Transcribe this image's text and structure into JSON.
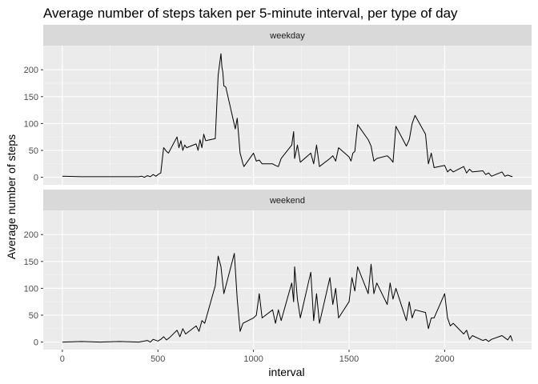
{
  "chart_data": {
    "type": "line",
    "title": "Average number of steps taken per 5-minute interval, per type of day",
    "xlabel": "interval",
    "ylabel": "Average number of steps",
    "xlim": [
      -100,
      2455
    ],
    "ylim": [
      -14,
      245
    ],
    "x_ticks": [
      0,
      500,
      1000,
      1500,
      2000
    ],
    "y_ticks": [
      0,
      50,
      100,
      150,
      200
    ],
    "grid": true,
    "facets": [
      {
        "panel": "weekday",
        "x": [
          0,
          100,
          200,
          300,
          400,
          415,
          430,
          445,
          460,
          475,
          490,
          500,
          515,
          530,
          545,
          555,
          600,
          610,
          620,
          630,
          640,
          650,
          700,
          710,
          720,
          730,
          740,
          750,
          800,
          815,
          830,
          835,
          840,
          845,
          855,
          905,
          915,
          930,
          945,
          950,
          1000,
          1015,
          1030,
          1045,
          1100,
          1115,
          1130,
          1145,
          1200,
          1210,
          1215,
          1230,
          1245,
          1300,
          1315,
          1330,
          1345,
          1400,
          1415,
          1430,
          1445,
          1500,
          1510,
          1520,
          1530,
          1545,
          1600,
          1615,
          1630,
          1645,
          1700,
          1715,
          1730,
          1745,
          1800,
          1815,
          1830,
          1845,
          1900,
          1915,
          1930,
          1945,
          2000,
          2015,
          2030,
          2045,
          2100,
          2115,
          2130,
          2145,
          2200,
          2215,
          2230,
          2245,
          2300,
          2315,
          2330,
          2355
        ],
        "y": [
          2,
          1,
          1,
          1,
          1,
          2,
          0,
          3,
          1,
          5,
          2,
          5,
          8,
          55,
          48,
          45,
          75,
          55,
          68,
          50,
          60,
          55,
          62,
          50,
          70,
          55,
          80,
          68,
          72,
          190,
          230,
          205,
          195,
          170,
          168,
          90,
          110,
          45,
          25,
          20,
          45,
          30,
          32,
          25,
          25,
          22,
          20,
          35,
          60,
          85,
          35,
          60,
          28,
          45,
          25,
          60,
          20,
          35,
          40,
          30,
          55,
          38,
          30,
          45,
          48,
          98,
          70,
          58,
          30,
          35,
          40,
          35,
          28,
          95,
          58,
          70,
          100,
          115,
          80,
          25,
          45,
          18,
          22,
          10,
          15,
          10,
          20,
          8,
          15,
          10,
          12,
          5,
          8,
          2,
          10,
          2,
          4,
          1
        ]
      },
      {
        "panel": "weekend",
        "x": [
          0,
          100,
          200,
          300,
          400,
          445,
          460,
          475,
          500,
          515,
          530,
          545,
          560,
          600,
          615,
          630,
          645,
          700,
          715,
          730,
          745,
          800,
          815,
          830,
          845,
          900,
          915,
          930,
          945,
          1000,
          1015,
          1030,
          1045,
          1100,
          1115,
          1130,
          1145,
          1200,
          1210,
          1215,
          1230,
          1245,
          1300,
          1315,
          1330,
          1345,
          1400,
          1415,
          1430,
          1445,
          1500,
          1515,
          1530,
          1545,
          1600,
          1615,
          1630,
          1645,
          1700,
          1715,
          1730,
          1745,
          1800,
          1815,
          1830,
          1845,
          1900,
          1915,
          1930,
          1945,
          2000,
          2015,
          2030,
          2045,
          2100,
          2115,
          2130,
          2145,
          2200,
          2215,
          2230,
          2245,
          2300,
          2315,
          2330,
          2345,
          2355
        ],
        "y": [
          0,
          1,
          0,
          1,
          0,
          3,
          0,
          5,
          2,
          5,
          10,
          4,
          8,
          22,
          10,
          25,
          15,
          30,
          20,
          40,
          35,
          105,
          160,
          140,
          90,
          165,
          80,
          20,
          35,
          45,
          50,
          90,
          45,
          60,
          35,
          60,
          40,
          110,
          75,
          140,
          80,
          45,
          130,
          40,
          90,
          35,
          120,
          70,
          100,
          45,
          75,
          120,
          95,
          140,
          90,
          145,
          90,
          110,
          70,
          110,
          80,
          100,
          40,
          75,
          45,
          60,
          55,
          25,
          45,
          45,
          90,
          45,
          30,
          35,
          15,
          22,
          5,
          12,
          3,
          5,
          1,
          5,
          12,
          8,
          4,
          12,
          2
        ]
      }
    ]
  }
}
